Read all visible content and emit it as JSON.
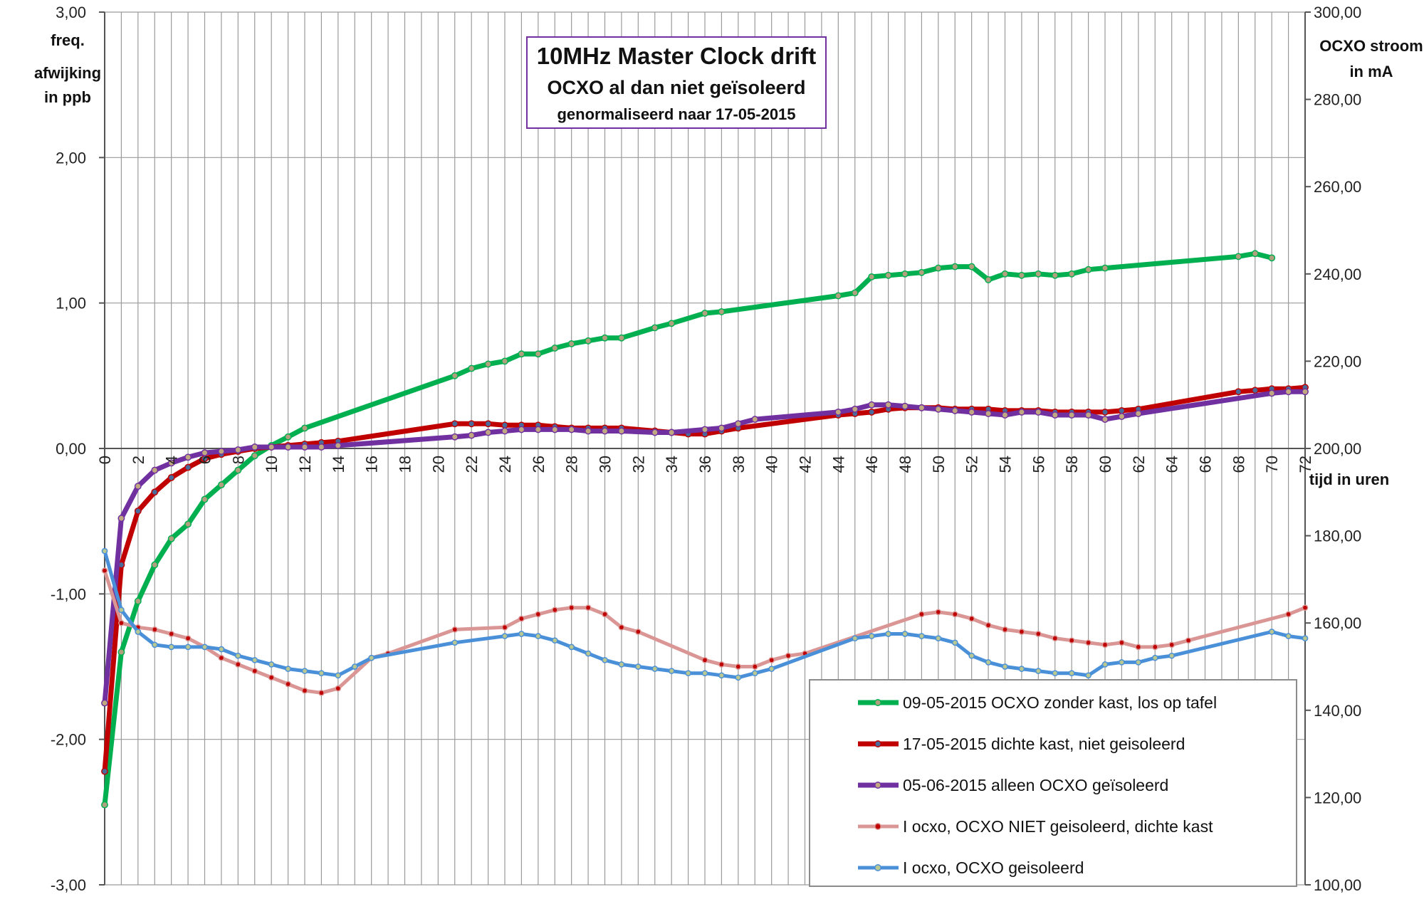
{
  "chart_data": {
    "type": "line",
    "title": "10MHz Master Clock drift",
    "subtitle": "OCXO al dan niet geïsoleerd",
    "subtitle2": "genormaliseerd naar 17-05-2015",
    "xlabel": "tijd in uren",
    "ylabel_left": [
      "freq.",
      "afwijking",
      "in ppb"
    ],
    "ylabel_right": [
      "OCXO stroom",
      "in mA"
    ],
    "xlim": [
      0,
      72
    ],
    "ylim_left": [
      -3,
      3
    ],
    "ylim_right": [
      100,
      300
    ],
    "x_ticks": [
      "0",
      "2",
      "4",
      "6",
      "8",
      "10",
      "12",
      "14",
      "16",
      "18",
      "20",
      "22",
      "24",
      "26",
      "28",
      "30",
      "32",
      "34",
      "36",
      "38",
      "40",
      "42",
      "44",
      "46",
      "48",
      "50",
      "52",
      "54",
      "56",
      "58",
      "60",
      "62",
      "64",
      "66",
      "68",
      "70",
      "72"
    ],
    "y_left_ticks": [
      "-3,00",
      "-2,00",
      "-1,00",
      "0,00",
      "1,00",
      "2,00",
      "3,00"
    ],
    "y_right_ticks": [
      "100,00",
      "120,00",
      "140,00",
      "160,00",
      "180,00",
      "200,00",
      "220,00",
      "240,00",
      "260,00",
      "280,00",
      "300,00"
    ],
    "grid": true,
    "legend_position": "bottom-right",
    "series": [
      {
        "name": "09-05-2015 OCXO zonder kast, los op tafel",
        "axis": "left",
        "color": "#00B050",
        "marker": "#B0A080",
        "width": 7,
        "x": [
          0,
          1,
          2,
          3,
          4,
          5,
          6,
          7,
          8,
          9,
          10,
          11,
          12,
          21,
          22,
          23,
          24,
          25,
          26,
          27,
          28,
          29,
          30,
          31,
          33,
          34,
          36,
          37,
          44,
          45,
          46,
          47,
          48,
          49,
          50,
          51,
          52,
          53,
          54,
          55,
          56,
          57,
          58,
          59,
          60,
          68,
          69,
          70
        ],
        "y": [
          -2.45,
          -1.4,
          -1.05,
          -0.8,
          -0.62,
          -0.52,
          -0.35,
          -0.25,
          -0.15,
          -0.05,
          0.02,
          0.08,
          0.14,
          0.5,
          0.55,
          0.58,
          0.6,
          0.65,
          0.65,
          0.69,
          0.72,
          0.74,
          0.76,
          0.76,
          0.83,
          0.86,
          0.93,
          0.94,
          1.05,
          1.07,
          1.18,
          1.19,
          1.2,
          1.21,
          1.24,
          1.25,
          1.25,
          1.16,
          1.2,
          1.19,
          1.2,
          1.19,
          1.2,
          1.23,
          1.24,
          1.32,
          1.34,
          1.31
        ]
      },
      {
        "name": "17-05-2015 dichte kast, niet geisoleerd",
        "axis": "left",
        "color": "#C00000",
        "marker": "#4A6A9A",
        "width": 7,
        "x": [
          0,
          1,
          2,
          3,
          4,
          5,
          6,
          7,
          8,
          9,
          10,
          11,
          12,
          13,
          14,
          21,
          22,
          23,
          24,
          25,
          26,
          27,
          28,
          29,
          30,
          31,
          33,
          34,
          35,
          36,
          37,
          38,
          44,
          45,
          46,
          47,
          48,
          49,
          50,
          51,
          52,
          53,
          54,
          55,
          56,
          57,
          58,
          59,
          60,
          61,
          62,
          68,
          69,
          70,
          71,
          72
        ],
        "y": [
          -2.22,
          -0.8,
          -0.43,
          -0.3,
          -0.2,
          -0.13,
          -0.07,
          -0.04,
          -0.02,
          0.0,
          0.01,
          0.02,
          0.03,
          0.04,
          0.05,
          0.17,
          0.17,
          0.17,
          0.16,
          0.16,
          0.16,
          0.15,
          0.14,
          0.14,
          0.14,
          0.14,
          0.12,
          0.11,
          0.1,
          0.1,
          0.12,
          0.14,
          0.23,
          0.24,
          0.25,
          0.27,
          0.28,
          0.28,
          0.28,
          0.27,
          0.27,
          0.27,
          0.26,
          0.26,
          0.26,
          0.25,
          0.25,
          0.25,
          0.25,
          0.26,
          0.27,
          0.39,
          0.4,
          0.41,
          0.41,
          0.42
        ]
      },
      {
        "name": "05-06-2015 alleen OCXO geïsoleerd",
        "axis": "left",
        "color": "#7030A0",
        "marker": "#C0A880",
        "width": 7,
        "x": [
          0,
          1,
          2,
          3,
          4,
          5,
          6,
          7,
          8,
          9,
          10,
          11,
          12,
          13,
          14,
          21,
          22,
          23,
          24,
          25,
          26,
          27,
          28,
          29,
          30,
          31,
          33,
          34,
          36,
          37,
          38,
          39,
          44,
          45,
          46,
          47,
          48,
          49,
          50,
          51,
          52,
          53,
          54,
          55,
          56,
          57,
          58,
          59,
          60,
          61,
          62,
          70,
          71,
          72
        ],
        "y": [
          -1.75,
          -0.48,
          -0.26,
          -0.15,
          -0.1,
          -0.06,
          -0.03,
          -0.02,
          -0.01,
          0.01,
          0.01,
          0.01,
          0.01,
          0.01,
          0.02,
          0.08,
          0.09,
          0.11,
          0.12,
          0.13,
          0.13,
          0.13,
          0.13,
          0.12,
          0.12,
          0.12,
          0.11,
          0.11,
          0.13,
          0.14,
          0.17,
          0.2,
          0.25,
          0.27,
          0.3,
          0.3,
          0.29,
          0.28,
          0.27,
          0.26,
          0.25,
          0.24,
          0.23,
          0.25,
          0.25,
          0.23,
          0.23,
          0.23,
          0.2,
          0.22,
          0.24,
          0.38,
          0.39,
          0.39
        ]
      },
      {
        "name": "I ocxo, OCXO NIET geisoleerd, dichte kast",
        "axis": "right",
        "color": "#DA9694",
        "marker": "#C00000",
        "width": 5,
        "x": [
          0,
          1,
          2,
          3,
          4,
          5,
          6,
          7,
          8,
          9,
          10,
          11,
          12,
          13,
          14,
          16,
          17,
          21,
          24,
          25,
          26,
          27,
          28,
          29,
          30,
          31,
          32,
          36,
          37,
          38,
          39,
          40,
          41,
          42,
          49,
          50,
          51,
          52,
          53,
          54,
          55,
          56,
          57,
          58,
          59,
          60,
          61,
          62,
          63,
          64,
          65,
          71,
          72
        ],
        "y": [
          172,
          160,
          159,
          158.5,
          157.5,
          156.5,
          154.5,
          152,
          150.5,
          149,
          147.5,
          146,
          144.5,
          144,
          145,
          152,
          153,
          158.5,
          159,
          161,
          162,
          163,
          163.5,
          163.5,
          162,
          159,
          158,
          151.5,
          150.5,
          150,
          150,
          151.5,
          152.5,
          153,
          162,
          162.5,
          162,
          161,
          159.5,
          158.5,
          158,
          157.5,
          156.5,
          156,
          155.5,
          155,
          155.5,
          154.5,
          154.5,
          155,
          156,
          162,
          163.5
        ]
      },
      {
        "name": "I ocxo, OCXO geisoleerd",
        "axis": "right",
        "color": "#4A90D9",
        "marker": "#B8C890",
        "width": 5,
        "x": [
          0,
          1,
          2,
          3,
          4,
          5,
          6,
          7,
          8,
          9,
          10,
          11,
          12,
          13,
          14,
          15,
          16,
          21,
          24,
          25,
          26,
          27,
          28,
          29,
          30,
          31,
          32,
          33,
          34,
          35,
          36,
          37,
          38,
          39,
          40,
          45,
          46,
          47,
          48,
          49,
          50,
          51,
          52,
          53,
          54,
          55,
          56,
          57,
          58,
          59,
          60,
          61,
          62,
          63,
          64,
          70,
          71,
          72
        ],
        "y": [
          176.5,
          163,
          158,
          155,
          154.5,
          154.5,
          154.5,
          154,
          152.5,
          151.5,
          150.5,
          149.5,
          149,
          148.5,
          148,
          150,
          152,
          155.5,
          157,
          157.5,
          157,
          156,
          154.5,
          153,
          151.5,
          150.5,
          150,
          149.5,
          149,
          148.5,
          148.5,
          148,
          147.5,
          148.5,
          149.5,
          156.5,
          157,
          157.5,
          157.5,
          157,
          156.5,
          155.5,
          152.5,
          151,
          150,
          149.5,
          149,
          148.5,
          148.5,
          148,
          150.5,
          151,
          151,
          152,
          152.5,
          158,
          157,
          156.5
        ]
      }
    ]
  }
}
